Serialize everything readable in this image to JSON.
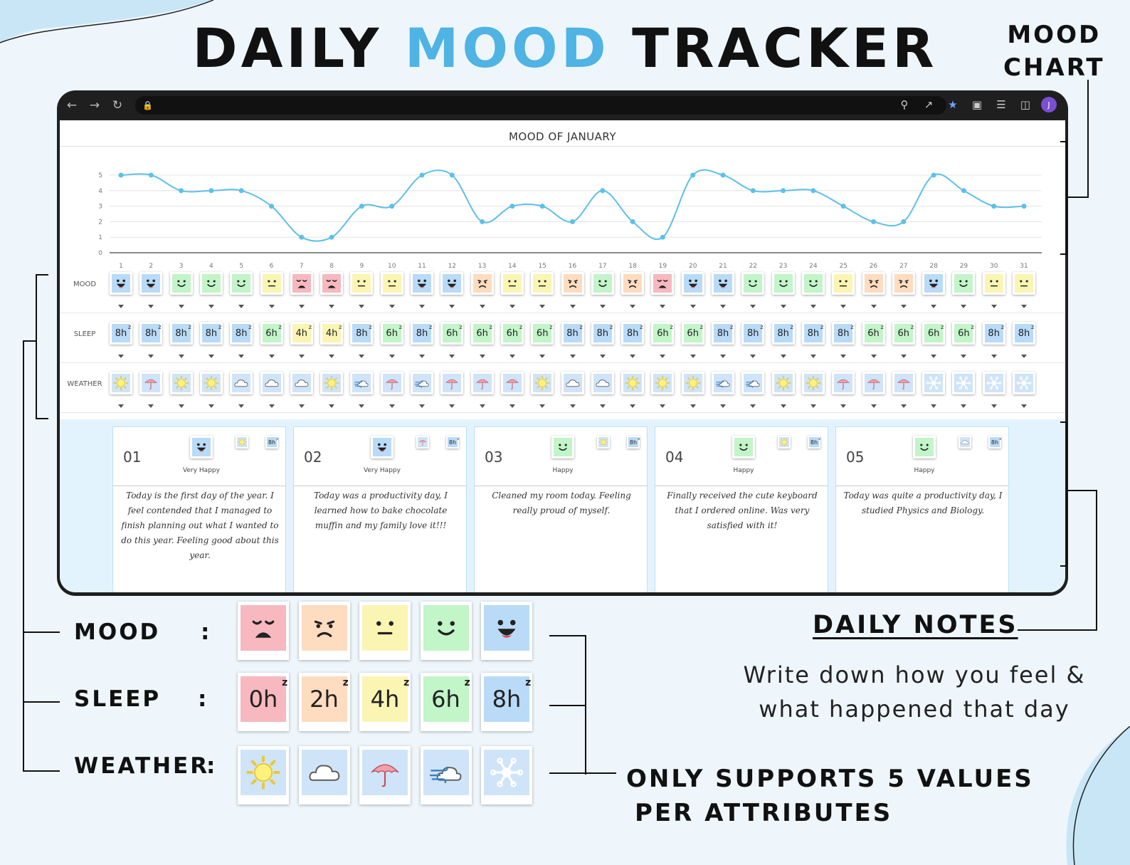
{
  "title": {
    "part1": "DAILY ",
    "part2": "MOOD",
    "part3": " TRACKER"
  },
  "chart_tag": {
    "line1": "MOOD",
    "line2": "CHART"
  },
  "colors": {
    "accent": "#4fb3e3",
    "mood": {
      "1": "#f7b8c0",
      "2": "#fddcbf",
      "3": "#fbf5b3",
      "4": "#c2f5c8",
      "5": "#b9dbf8"
    },
    "sleep": {
      "0h": "#f7b8c0",
      "2h": "#fddcbf",
      "4h": "#fbf5b3",
      "6h": "#c2f5c8",
      "8h": "#b9dbf8"
    },
    "weather_bg": "#cfe4f8"
  },
  "sheet": {
    "title": "MOOD OF JANUARY",
    "row_labels": {
      "mood": "MOOD",
      "sleep": "SLEEP",
      "weather": "WEATHER"
    }
  },
  "chart_data": {
    "type": "line",
    "title": "MOOD OF JANUARY",
    "x": [
      1,
      2,
      3,
      4,
      5,
      6,
      7,
      8,
      9,
      10,
      11,
      12,
      13,
      14,
      15,
      16,
      17,
      18,
      19,
      20,
      21,
      22,
      23,
      24,
      25,
      26,
      27,
      28,
      29,
      30,
      31
    ],
    "y": [
      5,
      5,
      4,
      4,
      4,
      3,
      1,
      1,
      3,
      3,
      5,
      5,
      2,
      3,
      3,
      2,
      4,
      2,
      1,
      5,
      5,
      4,
      4,
      4,
      3,
      2,
      2,
      5,
      4,
      3,
      3
    ],
    "ylim": [
      0,
      5
    ],
    "yticks": [
      0,
      1,
      2,
      3,
      4,
      5
    ],
    "grid": true,
    "line_color": "#5ec0e8"
  },
  "days": {
    "mood": [
      5,
      5,
      4,
      4,
      4,
      3,
      1,
      1,
      3,
      3,
      5,
      5,
      2,
      3,
      3,
      2,
      4,
      2,
      1,
      5,
      5,
      4,
      4,
      4,
      3,
      2,
      2,
      5,
      4,
      3,
      3
    ],
    "sleep": [
      "8h",
      "8h",
      "8h",
      "8h",
      "8h",
      "6h",
      "4h",
      "4h",
      "8h",
      "6h",
      "8h",
      "6h",
      "6h",
      "6h",
      "6h",
      "8h",
      "8h",
      "8h",
      "6h",
      "6h",
      "8h",
      "8h",
      "8h",
      "8h",
      "8h",
      "6h",
      "6h",
      "6h",
      "6h",
      "8h",
      "8h"
    ],
    "weather": [
      "sun-icon",
      "umbrella-icon",
      "sun-icon",
      "sun-icon",
      "cloud-icon",
      "cloud-icon",
      "cloud-icon",
      "sun-icon",
      "wind-icon",
      "umbrella-icon",
      "wind-icon",
      "umbrella-icon",
      "umbrella-icon",
      "umbrella-icon",
      "sun-icon",
      "cloud-icon",
      "cloud-icon",
      "sun-icon",
      "sun-icon",
      "sun-icon",
      "wind-icon",
      "wind-icon",
      "sun-icon",
      "sun-icon",
      "umbrella-icon",
      "umbrella-icon",
      "umbrella-icon",
      "snowflake-icon",
      "snowflake-icon",
      "snowflake-icon",
      "snowflake-icon"
    ]
  },
  "notes": [
    {
      "num": "01",
      "mood": 5,
      "mood_label": "Very Happy",
      "weather": "sun-icon",
      "sleep": "8h",
      "text": "Today is the first day of the year. I feel contended that I managed to finish planning out what I wanted to do this year. Feeling good about this year."
    },
    {
      "num": "02",
      "mood": 5,
      "mood_label": "Very Happy",
      "weather": "umbrella-icon",
      "sleep": "8h",
      "text": "Today was a productivity day, I learned how to bake chocolate muffin and my family love it!!!"
    },
    {
      "num": "03",
      "mood": 4,
      "mood_label": "Happy",
      "weather": "sun-icon",
      "sleep": "8h",
      "text": "Cleaned my room today. Feeling really proud of myself."
    },
    {
      "num": "04",
      "mood": 4,
      "mood_label": "Happy",
      "weather": "sun-icon",
      "sleep": "8h",
      "text": "Finally received the cute keyboard that I ordered online. Was very satisfied with it!"
    },
    {
      "num": "05",
      "mood": 4,
      "mood_label": "Happy",
      "weather": "cloud-icon",
      "sleep": "8h",
      "text": "Today was quite a productivity day, I studied Physics and Biology."
    }
  ],
  "legend": {
    "mood_label": "MOOD",
    "sleep_label": "SLEEP",
    "weather_label": "WEATHER",
    "colon": ":",
    "mood_values": [
      1,
      2,
      3,
      4,
      5
    ],
    "sleep_values": [
      "0h",
      "2h",
      "4h",
      "6h",
      "8h"
    ],
    "weather_values": [
      "sun-icon",
      "cloud-icon",
      "umbrella-icon",
      "wind-icon",
      "snowflake-icon"
    ]
  },
  "daily_notes": {
    "heading": "DAILY NOTES",
    "desc_line1": "Write down how you feel &",
    "desc_line2": "what happened that day"
  },
  "support": {
    "line1": "ONLY SUPPORTS 5 VALUES",
    "line2": "PER ATTRIBUTES"
  },
  "browser": {
    "avatar": "J"
  }
}
